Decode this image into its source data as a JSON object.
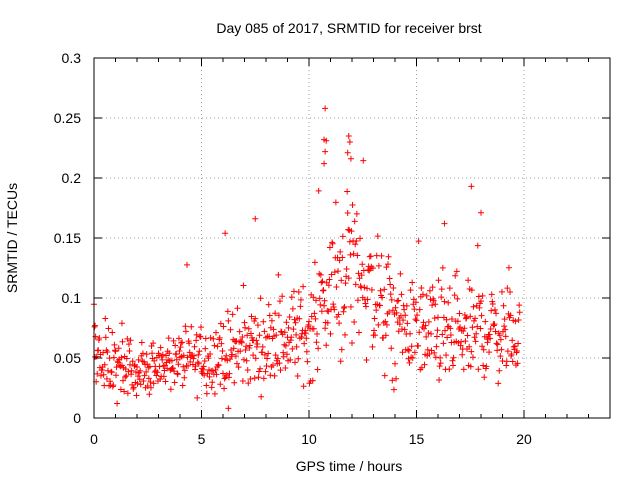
{
  "chart_data": {
    "type": "scatter",
    "title": "Day 085 of 2017, SRMTID for receiver brst",
    "xlabel": "GPS time / hours",
    "ylabel": "SRMTID / TECUs",
    "xlim": [
      0,
      24
    ],
    "ylim": [
      0,
      0.3
    ],
    "x_ticks": [
      0,
      5,
      10,
      15,
      20
    ],
    "x_tick_labels": [
      "0",
      "5",
      "10",
      "15",
      "20"
    ],
    "y_ticks": [
      0,
      0.05,
      0.1,
      0.15,
      0.2,
      0.25,
      0.3
    ],
    "y_tick_labels": [
      "0",
      "0.05",
      "0.1",
      "0.15",
      "0.2",
      "0.25",
      "0.3"
    ],
    "grid": true,
    "marker": "+",
    "marker_color": "#ff0000",
    "data_extent_hours": [
      0,
      19.8
    ],
    "sample_step_hours": 0.025,
    "baseline_profile": [
      [
        0.0,
        0.05
      ],
      [
        1.0,
        0.042
      ],
      [
        2.0,
        0.04
      ],
      [
        2.5,
        0.038
      ],
      [
        3.0,
        0.045
      ],
      [
        4.0,
        0.048
      ],
      [
        5.0,
        0.05
      ],
      [
        6.0,
        0.052
      ],
      [
        7.0,
        0.058
      ],
      [
        8.0,
        0.062
      ],
      [
        9.0,
        0.068
      ],
      [
        10.0,
        0.072
      ],
      [
        10.7,
        0.095
      ],
      [
        11.5,
        0.115
      ],
      [
        12.0,
        0.13
      ],
      [
        12.5,
        0.12
      ],
      [
        13.0,
        0.1
      ],
      [
        14.0,
        0.075
      ],
      [
        15.0,
        0.075
      ],
      [
        16.0,
        0.068
      ],
      [
        17.0,
        0.065
      ],
      [
        18.0,
        0.075
      ],
      [
        19.0,
        0.07
      ],
      [
        19.8,
        0.068
      ]
    ],
    "notable_points": [
      {
        "x": 10.75,
        "y": 0.258
      },
      {
        "x": 10.7,
        "y": 0.232
      },
      {
        "x": 10.8,
        "y": 0.231
      },
      {
        "x": 11.85,
        "y": 0.235
      },
      {
        "x": 11.9,
        "y": 0.23
      },
      {
        "x": 11.8,
        "y": 0.221
      },
      {
        "x": 11.95,
        "y": 0.216
      },
      {
        "x": 10.75,
        "y": 0.222
      },
      {
        "x": 10.7,
        "y": 0.212
      },
      {
        "x": 17.55,
        "y": 0.193
      },
      {
        "x": 7.5,
        "y": 0.166
      },
      {
        "x": 6.1,
        "y": 0.154
      },
      {
        "x": 6.25,
        "y": 0.008
      },
      {
        "x": 0.05,
        "y": 0.077
      },
      {
        "x": 1.3,
        "y": 0.079
      },
      {
        "x": 18.0,
        "y": 0.171
      },
      {
        "x": 16.3,
        "y": 0.162
      }
    ]
  }
}
